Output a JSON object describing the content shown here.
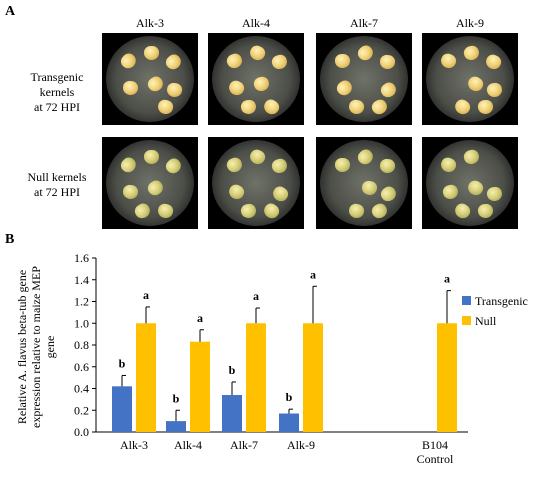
{
  "panel_a": {
    "letter": "A",
    "columns": [
      "Alk-3",
      "Alk-4",
      "Alk-7",
      "Alk-9"
    ],
    "rows": [
      {
        "label_lines": [
          "Transgenic",
          "kernels",
          "at 72 HPI"
        ]
      },
      {
        "label_lines": [
          "Null  kernels",
          "at 72 HPI"
        ]
      }
    ]
  },
  "panel_b": {
    "letter": "B"
  },
  "chart_data": {
    "type": "bar",
    "categories": [
      "Alk-3",
      "Alk-4",
      "Alk-7",
      "Alk-9",
      "B104 Control"
    ],
    "category_label_lines": [
      [
        "Alk-3"
      ],
      [
        "Alk-4"
      ],
      [
        "Alk-7"
      ],
      [
        "Alk-9"
      ],
      [
        "B104",
        "Control"
      ]
    ],
    "ylabel_lines": [
      "Relative A. flavus beta-tub gene",
      "expression relative to maize MEP",
      "gene"
    ],
    "ylim": [
      0,
      1.6
    ],
    "yticks": [
      "0.0",
      "0.2",
      "0.4",
      "0.6",
      "0.8",
      "1.0",
      "1.2",
      "1.4",
      "1.6"
    ],
    "grid": false,
    "legend_position": "right",
    "series": [
      {
        "name": "Transgenic",
        "color": "#4472c4",
        "values": [
          0.42,
          0.1,
          0.34,
          0.17,
          null
        ],
        "errors": [
          0.1,
          0.1,
          0.12,
          0.04,
          null
        ],
        "labels": [
          "b",
          "b",
          "b",
          "b",
          ""
        ]
      },
      {
        "name": "Null",
        "color": "#ffc000",
        "values": [
          1.0,
          0.83,
          1.0,
          1.0,
          1.0
        ],
        "errors": [
          0.15,
          0.11,
          0.14,
          0.34,
          0.3
        ],
        "labels": [
          "a",
          "a",
          "a",
          "a",
          "a"
        ]
      }
    ]
  }
}
